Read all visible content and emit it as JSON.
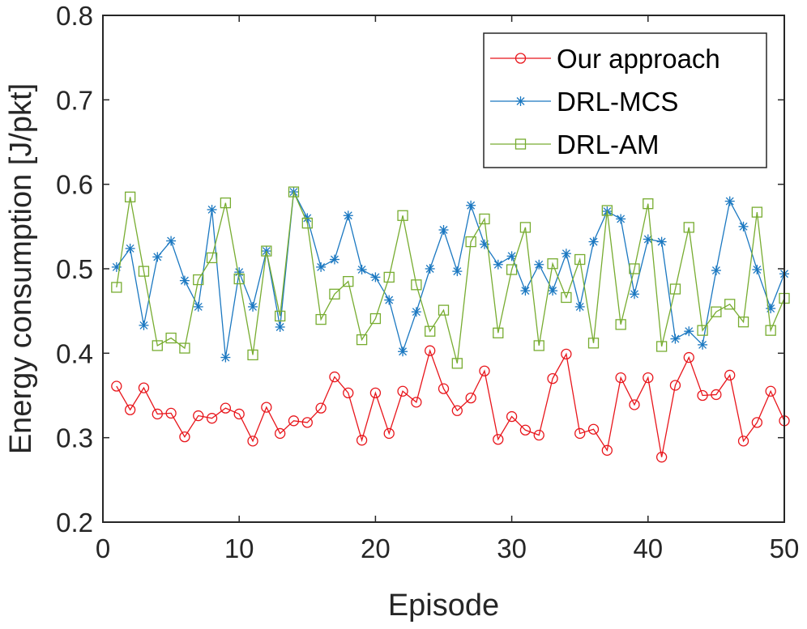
{
  "chart_data": {
    "type": "line",
    "title": "",
    "xlabel": "Episode",
    "ylabel": "Energy consumption [J/pkt]",
    "xlim": [
      0,
      50
    ],
    "ylim": [
      0.2,
      0.8
    ],
    "xticks": [
      0,
      10,
      20,
      30,
      40,
      50
    ],
    "yticks": [
      0.2,
      0.3,
      0.4,
      0.5,
      0.6,
      0.7,
      0.8
    ],
    "ytick_labels": [
      "0.2",
      "0.3",
      "0.4",
      "0.5",
      "0.6",
      "0.7",
      "0.8"
    ],
    "grid": false,
    "legend_position": "top-right",
    "x": [
      1,
      2,
      3,
      4,
      5,
      6,
      7,
      8,
      9,
      10,
      11,
      12,
      13,
      14,
      15,
      16,
      17,
      18,
      19,
      20,
      21,
      22,
      23,
      24,
      25,
      26,
      27,
      28,
      29,
      30,
      31,
      32,
      33,
      34,
      35,
      36,
      37,
      38,
      39,
      40,
      41,
      42,
      43,
      44,
      45,
      46,
      47,
      48,
      49,
      50
    ],
    "series": [
      {
        "name": "Our approach",
        "color": "#e8151b",
        "marker": "circle",
        "values": [
          0.361,
          0.333,
          0.359,
          0.328,
          0.329,
          0.301,
          0.326,
          0.323,
          0.335,
          0.328,
          0.296,
          0.336,
          0.305,
          0.32,
          0.318,
          0.335,
          0.372,
          0.353,
          0.297,
          0.353,
          0.305,
          0.355,
          0.342,
          0.403,
          0.358,
          0.332,
          0.347,
          0.379,
          0.298,
          0.325,
          0.309,
          0.303,
          0.37,
          0.399,
          0.305,
          0.31,
          0.285,
          0.371,
          0.339,
          0.371,
          0.277,
          0.362,
          0.395,
          0.35,
          0.351,
          0.374,
          0.296,
          0.318,
          0.355,
          0.32
        ]
      },
      {
        "name": "DRL-MCS",
        "color": "#1b78c1",
        "marker": "asterisk",
        "values": [
          0.502,
          0.524,
          0.433,
          0.514,
          0.533,
          0.486,
          0.455,
          0.57,
          0.395,
          0.496,
          0.455,
          0.521,
          0.431,
          0.591,
          0.56,
          0.502,
          0.511,
          0.563,
          0.499,
          0.49,
          0.463,
          0.402,
          0.449,
          0.5,
          0.546,
          0.497,
          0.575,
          0.529,
          0.505,
          0.515,
          0.474,
          0.505,
          0.474,
          0.518,
          0.455,
          0.532,
          0.568,
          0.559,
          0.47,
          0.535,
          0.532,
          0.417,
          0.426,
          0.41,
          0.498,
          0.58,
          0.55,
          0.499,
          0.453,
          0.494
        ]
      },
      {
        "name": "DRL-AM",
        "color": "#77ac30",
        "marker": "square",
        "values": [
          0.478,
          0.585,
          0.497,
          0.409,
          0.418,
          0.406,
          0.487,
          0.513,
          0.578,
          0.488,
          0.398,
          0.521,
          0.444,
          0.591,
          0.554,
          0.44,
          0.47,
          0.485,
          0.416,
          0.441,
          0.49,
          0.563,
          0.481,
          0.426,
          0.451,
          0.388,
          0.532,
          0.559,
          0.424,
          0.499,
          0.549,
          0.409,
          0.506,
          0.466,
          0.511,
          0.412,
          0.569,
          0.434,
          0.5,
          0.577,
          0.408,
          0.476,
          0.549,
          0.427,
          0.449,
          0.458,
          0.437,
          0.567,
          0.427,
          0.465
        ]
      }
    ]
  }
}
